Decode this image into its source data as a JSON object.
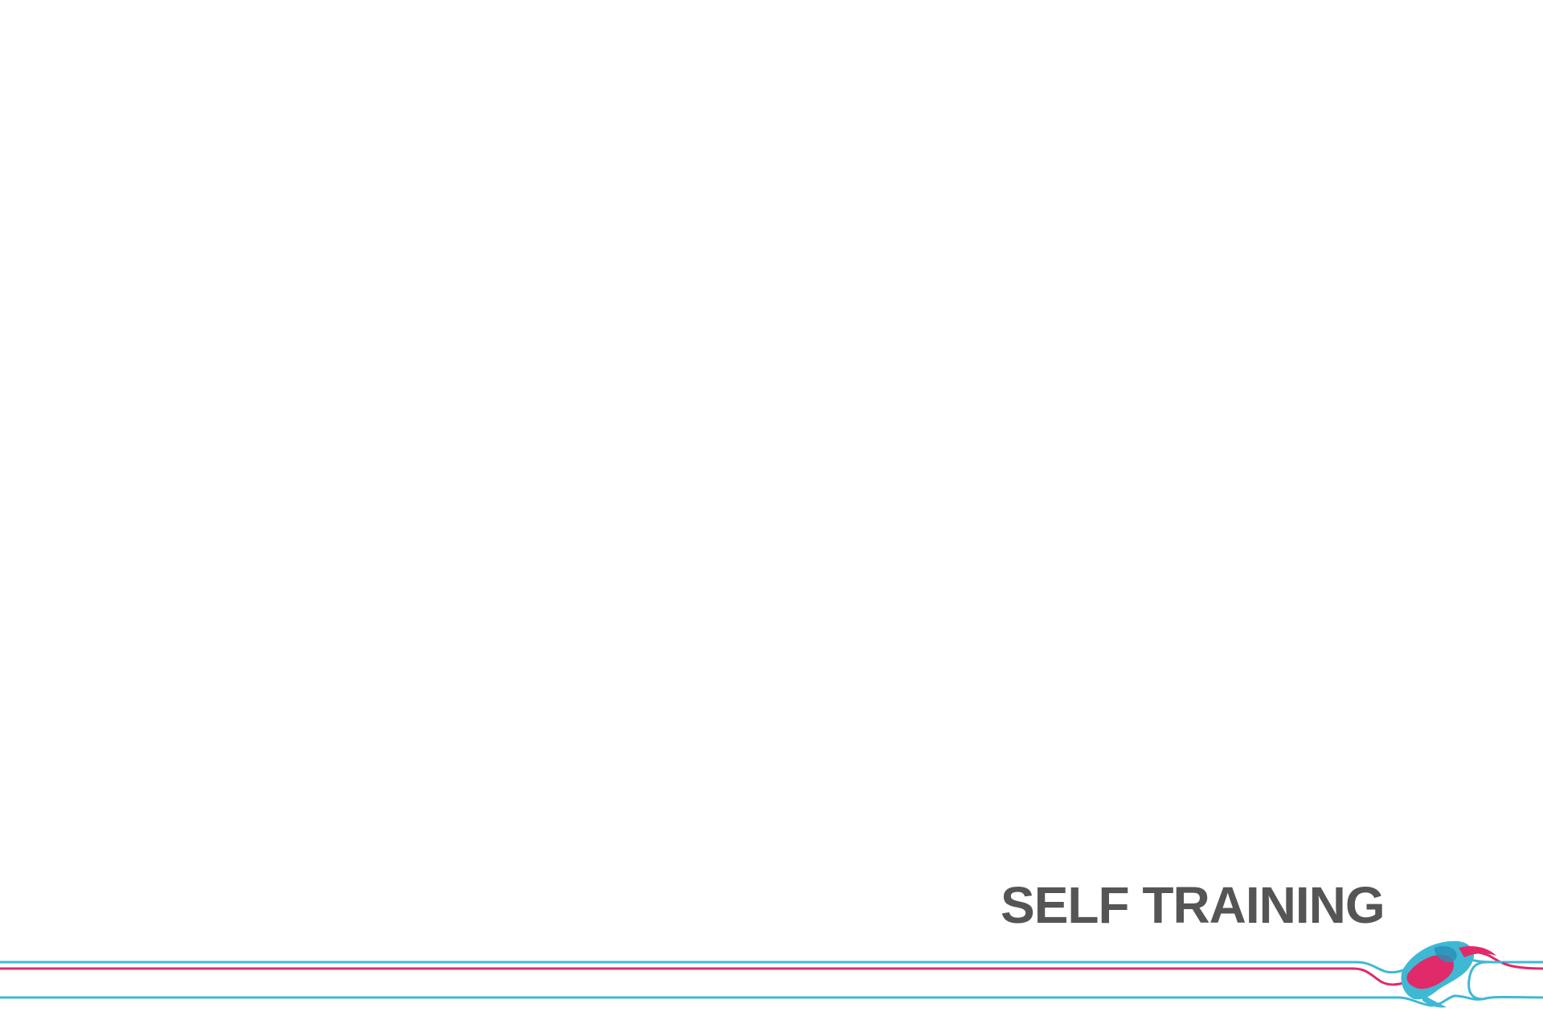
{
  "slide": {
    "title": "SELF TRAINING"
  },
  "colors": {
    "background": "#ffffff",
    "title": "#555555",
    "cyan": "#3fb9d3",
    "magenta": "#e02a6a"
  },
  "decoration": {
    "logo_icon": "paint-swirl-icon"
  }
}
